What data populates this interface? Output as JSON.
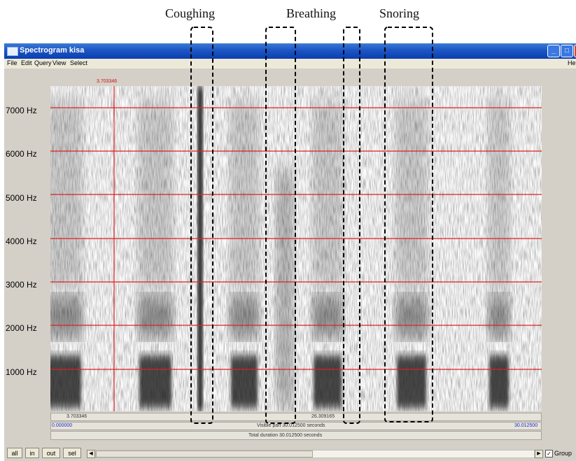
{
  "annotations": {
    "coughing": "Coughing",
    "breathing": "Breathing",
    "snoring": "Snoring"
  },
  "window": {
    "title": "Spectrogram kisa",
    "menu": [
      "File",
      "Edit",
      "Query",
      "View",
      "Select"
    ],
    "menu_help": "He"
  },
  "spectrogram": {
    "y_labels": [
      "7000 Hz",
      "6000 Hz",
      "5000 Hz",
      "4000 Hz",
      "3000 Hz",
      "2000 Hz",
      "1000 Hz"
    ],
    "cursor_time_top": "3.703346",
    "cursor_time_bottom": "3.703346",
    "right_time": "26.309165",
    "visible_start": "0.000000",
    "visible_part": "Visible part 30.012500 seconds",
    "visible_end": "30.012500",
    "total_duration": "Total duration 30.012500 seconds",
    "colors": {
      "gridline": "#e02020",
      "ink": "#141414"
    }
  },
  "toolbar": {
    "all": "all",
    "in": "in",
    "out": "out",
    "sel": "sel",
    "group_label": "Group",
    "group_checked": true
  }
}
